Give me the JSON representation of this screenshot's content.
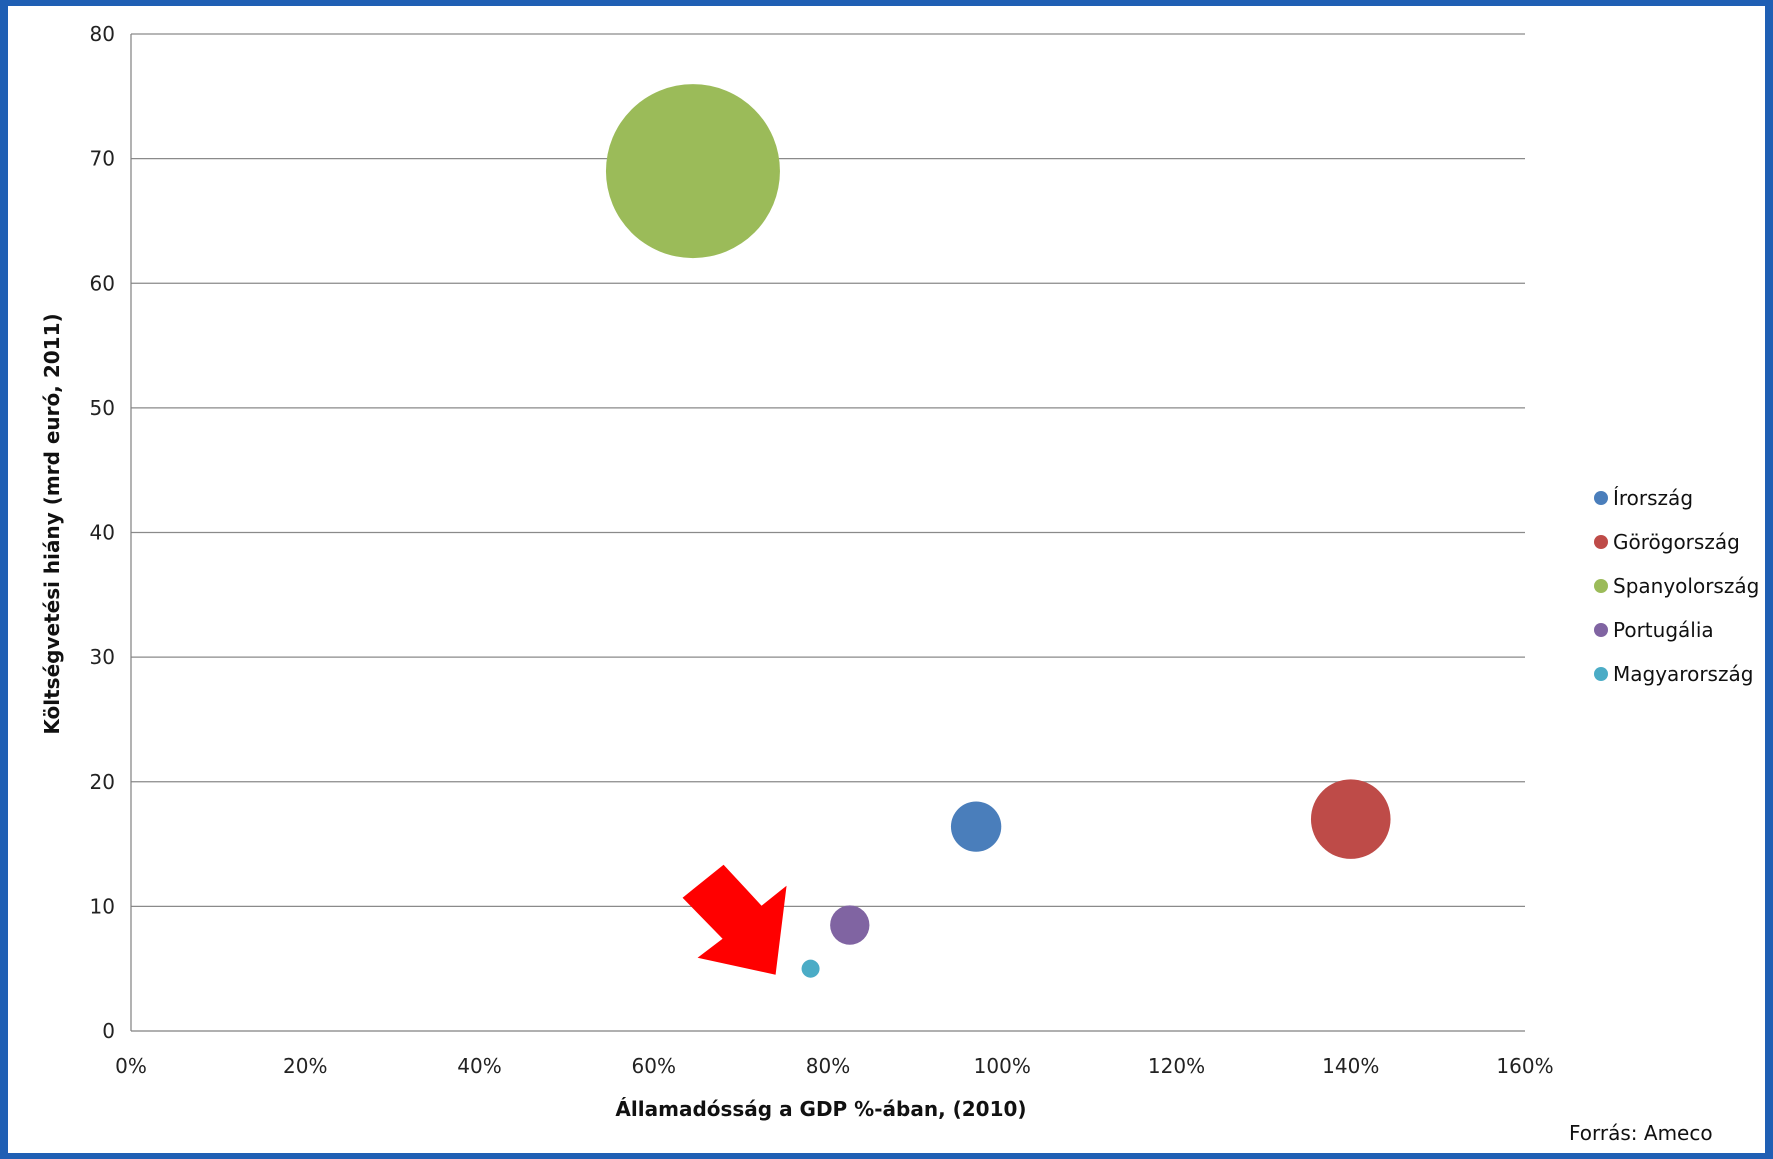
{
  "chart_data": {
    "type": "bubble",
    "xlabel": "Államadósság a GDP %-ában, (2010)",
    "ylabel": "Költségvetési hiány (mrd euró, 2011)",
    "xlim": [
      0,
      160
    ],
    "ylim": [
      0,
      80
    ],
    "x_ticks": [
      "0%",
      "20%",
      "40%",
      "60%",
      "80%",
      "100%",
      "120%",
      "140%",
      "160%"
    ],
    "y_ticks": [
      "0",
      "10",
      "20",
      "30",
      "40",
      "50",
      "60",
      "70",
      "80"
    ],
    "grid": "horizontal",
    "legend_position": "right",
    "series": [
      {
        "name": "Írország",
        "x": 97,
        "y": 16.4,
        "size": 16.4,
        "color": "#4a7ebb"
      },
      {
        "name": "Görögország",
        "x": 140,
        "y": 17,
        "size": 41,
        "color": "#be4b48"
      },
      {
        "name": "Spanyolország",
        "x": 64.5,
        "y": 69,
        "size": 196,
        "color": "#9bbb59"
      },
      {
        "name": "Portugália",
        "x": 82.5,
        "y": 8.5,
        "size": 10,
        "color": "#8064a2"
      },
      {
        "name": "Magyarország",
        "x": 78,
        "y": 5,
        "size": 2.1,
        "color": "#4bacc6"
      }
    ],
    "annotation": {
      "type": "arrow",
      "color": "#ff0000",
      "points_to": "Magyarország"
    },
    "source": "Forrás: Ameco"
  }
}
